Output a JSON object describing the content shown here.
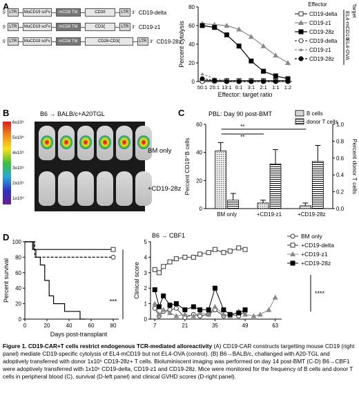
{
  "panel_a": {
    "letter": "A",
    "constructs": [
      {
        "parts": [
          "LTR",
          "MuCD19 scFv",
          "mCD8 TM",
          "CD3δ",
          "LTR"
        ],
        "name": "CD19-delta"
      },
      {
        "parts": [
          "LTR",
          "MuCD19 scFv",
          "mCD8 TM",
          "CD3ζ",
          "LTR"
        ],
        "name": "CD19-z1"
      },
      {
        "parts": [
          "LTR",
          "MuCD19 scFv",
          "mCD8 TM",
          "CD28-CD3ζ",
          "LTR"
        ],
        "name": "CD19-28z"
      }
    ],
    "prime5": "5'",
    "prime3": "3'"
  },
  "chart_a": {
    "type": "line",
    "ylabel": "Percent cytolysis",
    "xlabel": "Effector: target ratio",
    "categories": [
      "50:1",
      "25:1",
      "13:1",
      "6:1",
      "3:1",
      "2:1",
      "1:1",
      "1:2"
    ],
    "yticks": [
      0,
      20,
      40,
      60,
      80
    ],
    "ylim": [
      0,
      80
    ],
    "legend_header_effector": "Effector",
    "legend_header_target": "Target",
    "target_label_top": "EL4-mCD19",
    "target_label_bottom": "EL4-OVA",
    "series": [
      {
        "name": "CD19-delta",
        "values": [
          1,
          1,
          1,
          1,
          1,
          1,
          1,
          1
        ],
        "color": "#333333",
        "marker": "square-open",
        "dash": false
      },
      {
        "name": "CD19-z1",
        "values": [
          62,
          61,
          60,
          56,
          48,
          38,
          28,
          20
        ],
        "color": "#888888",
        "marker": "triangle",
        "dash": false
      },
      {
        "name": "CD19-28z",
        "values": [
          60,
          58,
          50,
          38,
          22,
          11,
          6,
          3
        ],
        "color": "#000000",
        "marker": "square",
        "dash": false
      },
      {
        "name": "CD19-delta",
        "values": [
          0,
          0,
          0,
          0,
          0,
          0,
          0,
          0
        ],
        "color": "#333333",
        "marker": "circle-open",
        "dash": true
      },
      {
        "name": "CD19-z1",
        "values": [
          8,
          3,
          1,
          0,
          0,
          0,
          0,
          0
        ],
        "color": "#888888",
        "marker": "triangle-small",
        "dash": true
      },
      {
        "name": "CD19-28z",
        "values": [
          3,
          1,
          0,
          0,
          0,
          0,
          0,
          0
        ],
        "color": "#000000",
        "marker": "circle",
        "dash": true
      }
    ]
  },
  "panel_b": {
    "letter": "B",
    "title": "B6 → BALB/c+A20TGL",
    "label_top": "BM only",
    "label_bottom": "+CD19-28z",
    "scale": [
      "6x10⁵",
      "5x10⁵",
      "4x10⁵",
      "3x10⁵",
      "2x10⁵",
      "1x10⁵"
    ]
  },
  "chart_c": {
    "letter": "C",
    "type": "bar",
    "title": "PBL: Day 90 post-BMT",
    "ylabel_left": "Percent CD19⁺B cells",
    "ylabel_right": "Percent donor T cells",
    "categories": [
      "BM only",
      "+CD19-z1",
      "+CD19-28z"
    ],
    "yticks_left": [
      0,
      20,
      40,
      60
    ],
    "yticks_right": [
      "0.0",
      "0.2",
      "0.4",
      "0.6",
      "0.8",
      "1.0"
    ],
    "ylim_left": [
      0,
      60
    ],
    "ylim_right": [
      0,
      1.0
    ],
    "significance": [
      "**",
      "**"
    ],
    "series": [
      {
        "name": "B cells",
        "axis": "left",
        "values": [
          41,
          4,
          2
        ],
        "errors": [
          6,
          2,
          2
        ]
      },
      {
        "name": "donor T cells",
        "axis": "right",
        "values": [
          0.1,
          0.53,
          0.56
        ],
        "errors": [
          0.08,
          0.17,
          0.19
        ]
      }
    ]
  },
  "chart_d_left": {
    "letter": "D",
    "type": "line",
    "ylabel": "Percent survival",
    "xlabel": "Days post-transplant",
    "xticks": [
      0,
      20,
      40,
      60,
      80
    ],
    "yticks": [
      0,
      20,
      40,
      60,
      80,
      100
    ],
    "xlim": [
      0,
      85
    ],
    "ylim": [
      0,
      100
    ],
    "significance": "***",
    "series": [
      {
        "name": "BM only",
        "x": [
          0,
          7,
          80
        ],
        "y": [
          100,
          90,
          90
        ],
        "style": "solid",
        "marker": "square-open-end"
      },
      {
        "name": "+CD19-z1",
        "x": [
          0,
          9,
          80
        ],
        "y": [
          100,
          80,
          80
        ],
        "style": "dashed",
        "marker": "circle-open-end"
      },
      {
        "name": "+CD19-28z",
        "x": [
          0,
          8,
          10,
          14,
          18,
          22,
          26,
          30,
          36,
          44,
          50,
          55
        ],
        "y": [
          100,
          90,
          80,
          70,
          50,
          30,
          20,
          20,
          10,
          10,
          0,
          0
        ],
        "style": "solid",
        "marker": "none"
      }
    ]
  },
  "chart_d_right": {
    "type": "line",
    "title": "B6 → CBF1",
    "ylabel": "Clinical score",
    "xticks": [
      7,
      21,
      35,
      49,
      63
    ],
    "yticks": [
      0,
      1,
      2,
      3,
      4,
      5
    ],
    "xlim": [
      5,
      66
    ],
    "ylim": [
      0,
      5
    ],
    "significance": "****",
    "series": [
      {
        "name": "BM only",
        "x": [
          7,
          9,
          11,
          14,
          17,
          21,
          25,
          28,
          32,
          35,
          39,
          42,
          46,
          49
        ],
        "y": [
          0.7,
          0.2,
          0.5,
          0.6,
          0.7,
          0.1,
          0.3,
          0.2,
          0.3,
          0.6,
          0.2,
          0.3,
          0.2,
          0.5
        ],
        "marker": "circle-open",
        "color": "#333333"
      },
      {
        "name": "+CD19-delta",
        "x": [
          7,
          9,
          11,
          14,
          17,
          21,
          25,
          28,
          32,
          35,
          39,
          42,
          46,
          49
        ],
        "y": [
          3.2,
          3.0,
          3.4,
          3.7,
          3.9,
          4.0,
          4.0,
          4.2,
          4.3,
          4.5,
          4.3,
          4.4,
          4.6,
          4.5
        ],
        "marker": "square-open",
        "color": "#333333"
      },
      {
        "name": "+CD19-z1",
        "x": [
          7,
          9,
          11,
          14,
          17,
          21,
          25,
          28,
          32,
          35,
          39,
          42,
          46,
          49,
          53,
          56,
          60,
          63
        ],
        "y": [
          1.0,
          0.3,
          0.6,
          0.4,
          0.2,
          0.3,
          0.2,
          0.4,
          0.3,
          0.8,
          0.3,
          0.2,
          0.5,
          0.3,
          0.2,
          0.3,
          0.6,
          1.4
        ],
        "marker": "triangle",
        "color": "#888888"
      },
      {
        "name": "+CD19-28z",
        "x": [
          7,
          9,
          11,
          14,
          17,
          21,
          25,
          28,
          32,
          35,
          39,
          42,
          46,
          49
        ],
        "y": [
          1.9,
          0.8,
          1.5,
          0.9,
          1.0,
          0.6,
          0.8,
          0.6,
          0.6,
          2.0,
          0.6,
          0.3,
          0.4,
          0.6
        ],
        "marker": "square",
        "color": "#000000"
      }
    ]
  },
  "caption": {
    "title": "Figure 1. CD19-CAR+T cells restrict endogenous TCR-mediated alloreactivity",
    "body": " (A) CD19-CAR constructs targetting mouse CD19 (right panel) mediate CD19-specific cytolysis of EL4-mCD19 but not EL4-OVA (control). (B) B6→BALB/c, challanged with A20-TGL and adoptively transferred with donor 1x10⁶ CD19-28z+ T cells. Bioluminiscent imaging was performed on day 14 post-BMT (C-D) B6→CBF1 were adoptively transferred with 1x10⁶ CD19-delta, CD19-z1 and CD19-28z. Mice were monitored for the frequency of B cells and donor T cells in peripheral blood (C), survival (D-left panel) and clinical GVHD scores (D-right panel)."
  }
}
